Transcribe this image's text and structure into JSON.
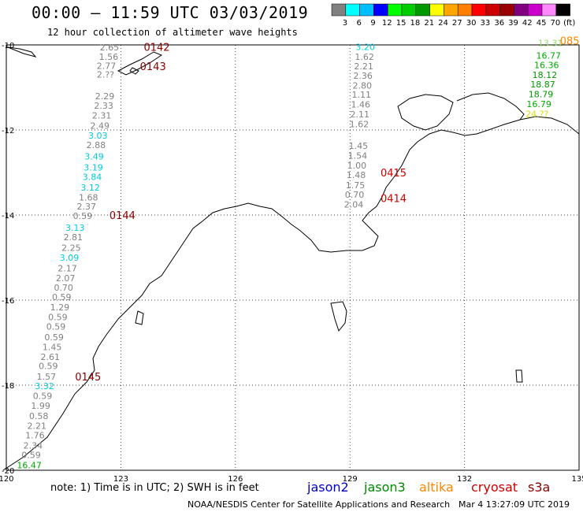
{
  "header": {
    "title": "00:00 – 11:59 UTC 03/03/2019",
    "subtitle": "12 hour collection of altimeter wave heights"
  },
  "colorbar": {
    "swatches": [
      "#808080",
      "#00ffff",
      "#00bfff",
      "#0000ff",
      "#00ff00",
      "#00cc00",
      "#009900",
      "#ffff00",
      "#ffa500",
      "#ff7f00",
      "#ff0000",
      "#cc0000",
      "#990000",
      "#800080",
      "#cc00cc",
      "#ff88ff",
      "#000000"
    ],
    "labels": [
      "3",
      "6",
      "9",
      "12",
      "15",
      "18",
      "21",
      "24",
      "27",
      "30",
      "33",
      "36",
      "39",
      "42",
      "45",
      "70",
      "(ft)"
    ]
  },
  "axes": {
    "x_ticks": [
      "120",
      "123",
      "126",
      "129",
      "132",
      "135"
    ],
    "y_ticks": [
      "-10",
      "-12",
      "-14",
      "-16",
      "-18",
      "-20"
    ]
  },
  "legend": {
    "note": "note: 1) Time is in UTC; 2) SWH is in feet",
    "satellites": [
      {
        "name": "jason2",
        "color": "#0000cc"
      },
      {
        "name": "jason3",
        "color": "#008800"
      },
      {
        "name": "altika",
        "color": "#ff8800"
      },
      {
        "name": "cryosat",
        "color": "#cc0000"
      },
      {
        "name": "s3a",
        "color": "#880000"
      }
    ]
  },
  "footer": {
    "credit": "NOAA/NESDIS Center for Satellite Applications and Research",
    "timestamp": "Mar  4 13:27:09 UTC 2019"
  },
  "track_times": [
    {
      "label": "0142",
      "color": "#880000",
      "lon": 123.6,
      "lat": -10.05
    },
    {
      "label": "0143",
      "color": "#880000",
      "lon": 123.5,
      "lat": -10.5
    },
    {
      "label": "0144",
      "color": "#880000",
      "lon": 122.7,
      "lat": -14.0
    },
    {
      "label": "0145",
      "color": "#880000",
      "lon": 121.8,
      "lat": -17.8
    },
    {
      "label": "0415",
      "color": "#cc0000",
      "lon": 129.8,
      "lat": -13.0
    },
    {
      "label": "0414",
      "color": "#cc0000",
      "lon": 129.8,
      "lat": -13.6
    },
    {
      "label": "085",
      "color": "#ff8800",
      "lon": 134.5,
      "lat": -9.9
    }
  ],
  "tracks": [
    {
      "name": "west",
      "points": [
        {
          "v": "2.65",
          "c": "#808080",
          "lon": 122.7,
          "lat": -10.06
        },
        {
          "v": "1.56",
          "c": "#808080",
          "lon": 122.68,
          "lat": -10.28
        },
        {
          "v": "2.77",
          "c": "#808080",
          "lon": 122.62,
          "lat": -10.49
        },
        {
          "v": "2.??",
          "c": "#808080",
          "lon": 122.6,
          "lat": -10.69
        },
        {
          "v": "2.29",
          "c": "#808080",
          "lon": 122.58,
          "lat": -11.2
        },
        {
          "v": "2.33",
          "c": "#808080",
          "lon": 122.55,
          "lat": -11.43
        },
        {
          "v": "2.31",
          "c": "#808080",
          "lon": 122.5,
          "lat": -11.66
        },
        {
          "v": "2.49",
          "c": "#808080",
          "lon": 122.45,
          "lat": -11.9
        },
        {
          "v": "3.03",
          "c": "#00ccdd",
          "lon": 122.4,
          "lat": -12.13
        },
        {
          "v": "2.88",
          "c": "#808080",
          "lon": 122.35,
          "lat": -12.35
        },
        {
          "v": "3.49",
          "c": "#00ccdd",
          "lon": 122.3,
          "lat": -12.62
        },
        {
          "v": "3.19",
          "c": "#00ccdd",
          "lon": 122.28,
          "lat": -12.88
        },
        {
          "v": "3.84",
          "c": "#00ccdd",
          "lon": 122.25,
          "lat": -13.1
        },
        {
          "v": "3.12",
          "c": "#00ccdd",
          "lon": 122.2,
          "lat": -13.35
        },
        {
          "v": "1.68",
          "c": "#808080",
          "lon": 122.15,
          "lat": -13.58
        },
        {
          "v": "2.37",
          "c": "#808080",
          "lon": 122.1,
          "lat": -13.8
        },
        {
          "v": "0.59",
          "c": "#808080",
          "lon": 122.0,
          "lat": -14.02
        },
        {
          "v": "3.13",
          "c": "#00ccdd",
          "lon": 121.8,
          "lat": -14.3
        },
        {
          "v": "2.81",
          "c": "#808080",
          "lon": 121.75,
          "lat": -14.52
        },
        {
          "v": "2.25",
          "c": "#808080",
          "lon": 121.7,
          "lat": -14.77
        },
        {
          "v": "3.09",
          "c": "#00ccdd",
          "lon": 121.65,
          "lat": -15.0
        },
        {
          "v": "2.17",
          "c": "#808080",
          "lon": 121.6,
          "lat": -15.25
        },
        {
          "v": "2.07",
          "c": "#808080",
          "lon": 121.55,
          "lat": -15.48
        },
        {
          "v": "0.70",
          "c": "#808080",
          "lon": 121.5,
          "lat": -15.7
        },
        {
          "v": "0.59",
          "c": "#808080",
          "lon": 121.45,
          "lat": -15.93
        },
        {
          "v": "1.29",
          "c": "#808080",
          "lon": 121.4,
          "lat": -16.17
        },
        {
          "v": "0.59",
          "c": "#808080",
          "lon": 121.35,
          "lat": -16.4
        },
        {
          "v": "0.59",
          "c": "#808080",
          "lon": 121.3,
          "lat": -16.62
        },
        {
          "v": "0.59",
          "c": "#808080",
          "lon": 121.25,
          "lat": -16.87
        },
        {
          "v": "1.45",
          "c": "#808080",
          "lon": 121.2,
          "lat": -17.1
        },
        {
          "v": "2.61",
          "c": "#808080",
          "lon": 121.15,
          "lat": -17.33
        },
        {
          "v": "0.59",
          "c": "#808080",
          "lon": 121.1,
          "lat": -17.55
        },
        {
          "v": "1.57",
          "c": "#808080",
          "lon": 121.05,
          "lat": -17.8
        },
        {
          "v": "3.32",
          "c": "#00ccdd",
          "lon": 121.0,
          "lat": -18.02
        },
        {
          "v": "0.59",
          "c": "#808080",
          "lon": 120.95,
          "lat": -18.25
        },
        {
          "v": "1.99",
          "c": "#808080",
          "lon": 120.9,
          "lat": -18.48
        },
        {
          "v": "0.58",
          "c": "#808080",
          "lon": 120.85,
          "lat": -18.72
        },
        {
          "v": "2.21",
          "c": "#808080",
          "lon": 120.8,
          "lat": -18.95
        },
        {
          "v": "1.76",
          "c": "#808080",
          "lon": 120.75,
          "lat": -19.18
        },
        {
          "v": "2.34",
          "c": "#808080",
          "lon": 120.7,
          "lat": -19.42
        },
        {
          "v": "0.59",
          "c": "#808080",
          "lon": 120.65,
          "lat": -19.64
        },
        {
          "v": "16.47",
          "c": "#00aa00",
          "lon": 120.6,
          "lat": -19.88
        }
      ]
    },
    {
      "name": "central",
      "points": [
        {
          "v": "3.20",
          "c": "#00ccdd",
          "lon": 129.4,
          "lat": -10.05
        },
        {
          "v": "1.62",
          "c": "#808080",
          "lon": 129.38,
          "lat": -10.28
        },
        {
          "v": "2.21",
          "c": "#808080",
          "lon": 129.36,
          "lat": -10.5
        },
        {
          "v": "2.36",
          "c": "#808080",
          "lon": 129.34,
          "lat": -10.72
        },
        {
          "v": "2.80",
          "c": "#808080",
          "lon": 129.32,
          "lat": -10.95
        },
        {
          "v": "1.11",
          "c": "#808080",
          "lon": 129.3,
          "lat": -11.17
        },
        {
          "v": "1.46",
          "c": "#808080",
          "lon": 129.28,
          "lat": -11.4
        },
        {
          "v": "2.11",
          "c": "#808080",
          "lon": 129.26,
          "lat": -11.63
        },
        {
          "v": "1.62",
          "c": "#808080",
          "lon": 129.24,
          "lat": -11.86
        },
        {
          "v": "1.45",
          "c": "#808080",
          "lon": 129.22,
          "lat": -12.37
        },
        {
          "v": "1.54",
          "c": "#808080",
          "lon": 129.2,
          "lat": -12.6
        },
        {
          "v": "1.00",
          "c": "#808080",
          "lon": 129.18,
          "lat": -12.83
        },
        {
          "v": "1.48",
          "c": "#808080",
          "lon": 129.16,
          "lat": -13.06
        },
        {
          "v": "1.75",
          "c": "#808080",
          "lon": 129.14,
          "lat": -13.3
        },
        {
          "v": "0.70",
          "c": "#808080",
          "lon": 129.12,
          "lat": -13.52
        },
        {
          "v": "2.04",
          "c": "#808080",
          "lon": 129.1,
          "lat": -13.75
        }
      ]
    },
    {
      "name": "east",
      "points": [
        {
          "v": "13.31",
          "c": "#99dd66",
          "lon": 134.25,
          "lat": -9.95
        },
        {
          "v": "16.77",
          "c": "#00aa00",
          "lon": 134.2,
          "lat": -10.25
        },
        {
          "v": "16.36",
          "c": "#00aa00",
          "lon": 134.15,
          "lat": -10.47
        },
        {
          "v": "18.12",
          "c": "#009900",
          "lon": 134.1,
          "lat": -10.7
        },
        {
          "v": "18.87",
          "c": "#009900",
          "lon": 134.05,
          "lat": -10.93
        },
        {
          "v": "18.79",
          "c": "#009900",
          "lon": 134.0,
          "lat": -11.16
        },
        {
          "v": "16.79",
          "c": "#00aa00",
          "lon": 133.95,
          "lat": -11.39
        },
        {
          "v": "24.??",
          "c": "#dddd00",
          "lon": 133.9,
          "lat": -11.62
        }
      ]
    }
  ]
}
